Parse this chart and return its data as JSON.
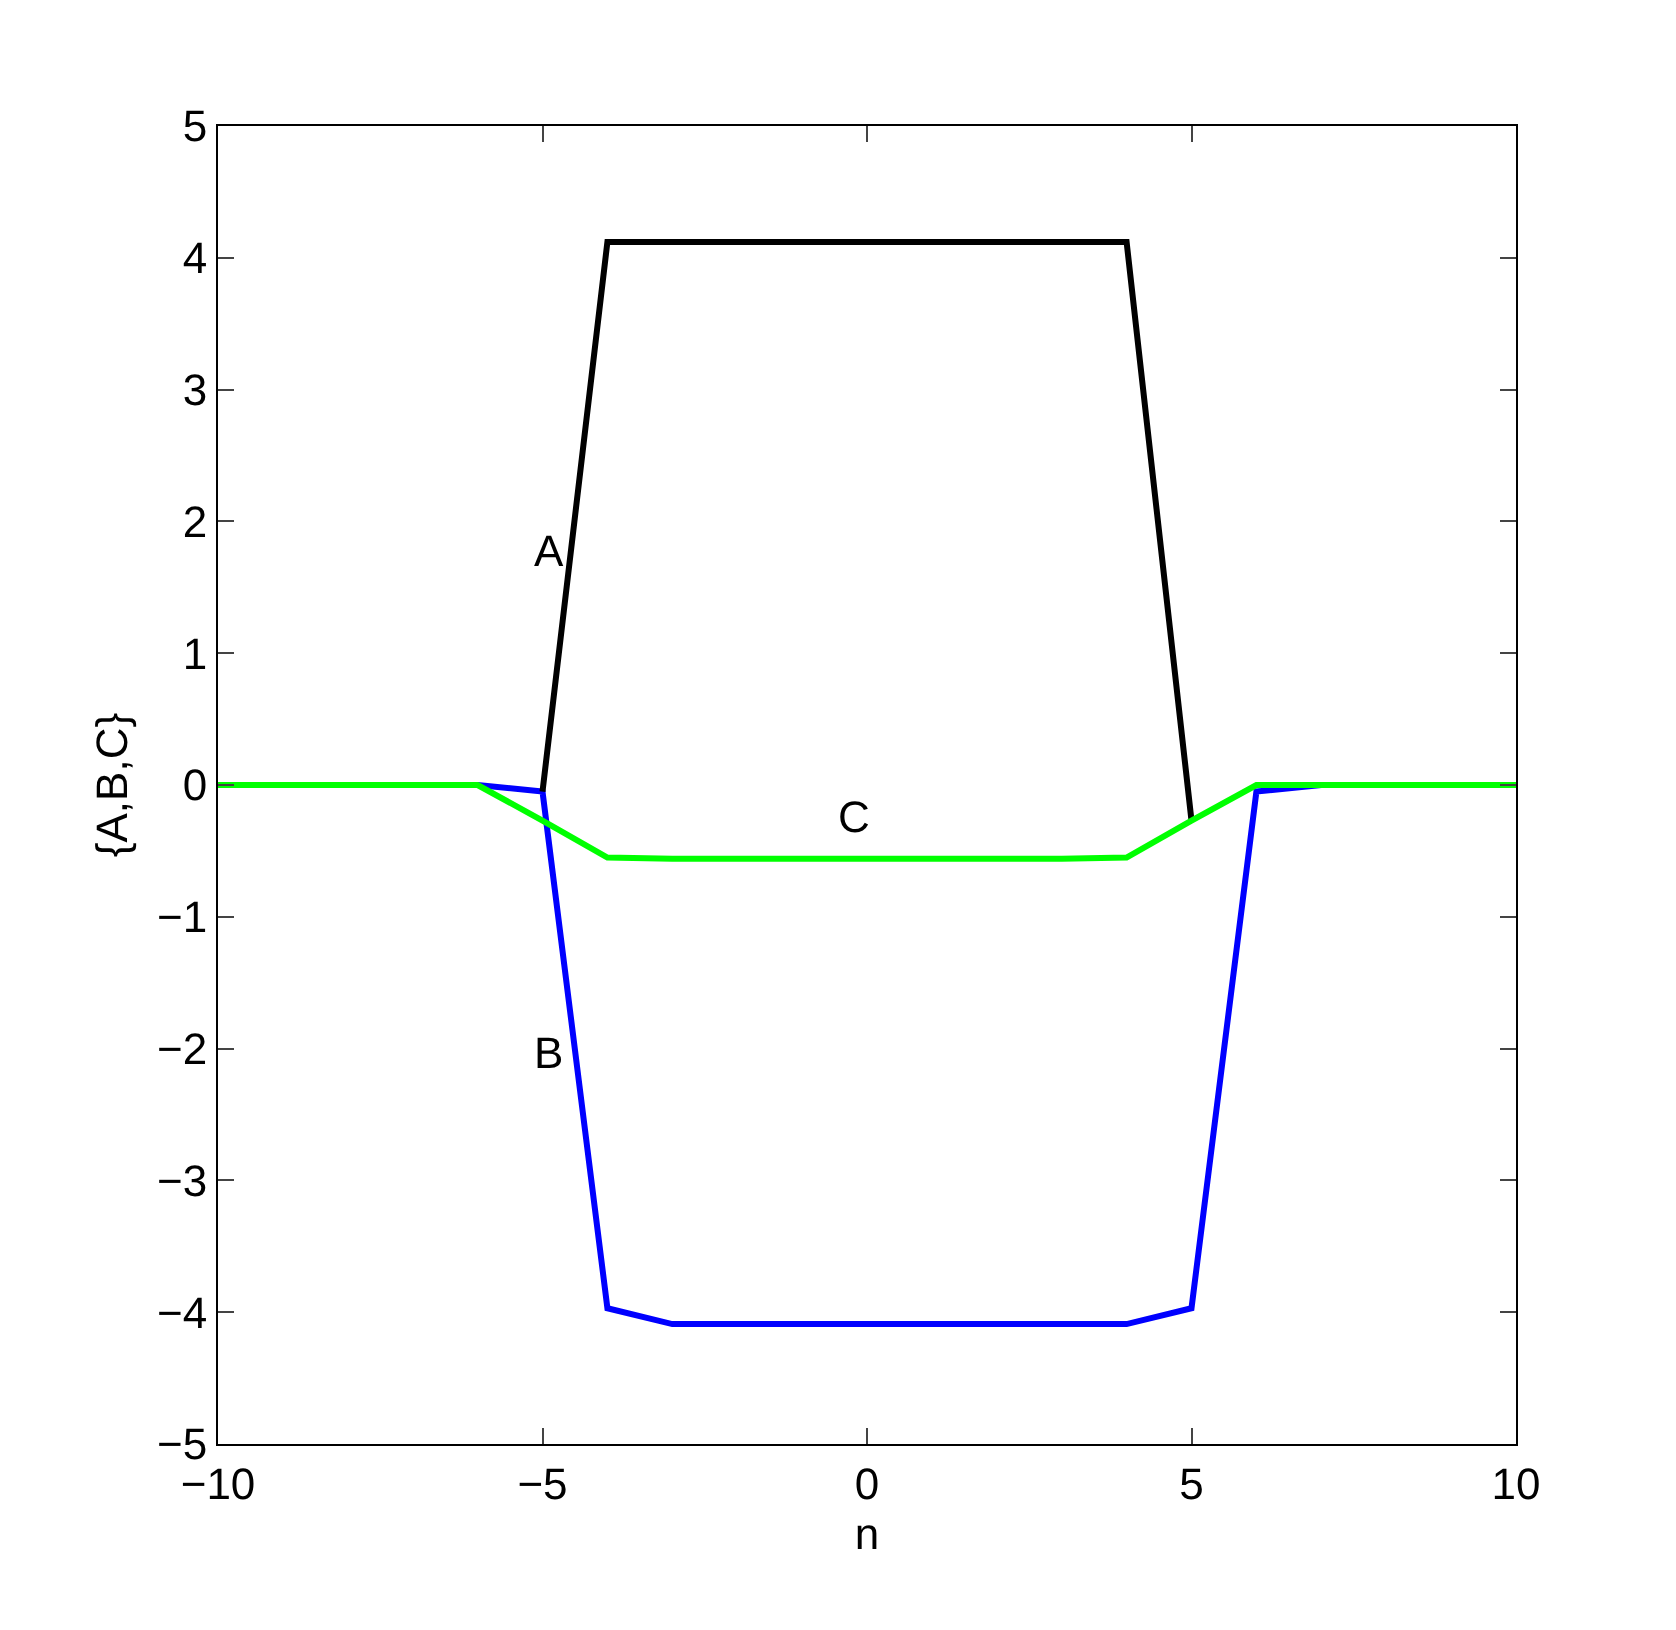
{
  "chart_data": {
    "type": "line",
    "xlabel": "n",
    "ylabel": "{A,B,C}",
    "xlim": [
      -10,
      10
    ],
    "xticks": [
      -10,
      -5,
      0,
      5,
      10
    ],
    "ylim": [
      -5,
      5
    ],
    "yticks": [
      -5,
      -4,
      -3,
      -2,
      -1,
      0,
      1,
      2,
      3,
      4,
      5
    ],
    "grid": false,
    "legend": false,
    "marker": "none",
    "line_style": "solid",
    "series": [
      {
        "name": "B",
        "color": "#0000ff",
        "x": [
          -7,
          -6,
          -5,
          -4,
          -3,
          -2,
          -1,
          0,
          1,
          2,
          3,
          4,
          5,
          6,
          7,
          8
        ],
        "values": [
          0,
          0,
          -0.05,
          -3.97,
          -4.09,
          -4.09,
          -4.09,
          -4.09,
          -4.09,
          -4.09,
          -4.09,
          -4.09,
          -3.97,
          -0.05,
          0,
          0
        ]
      },
      {
        "name": "A",
        "color": "#000000",
        "x": [
          -5,
          -4,
          -3,
          -2,
          -1,
          0,
          1,
          2,
          3,
          4,
          5
        ],
        "values": [
          -0.05,
          4.12,
          4.12,
          4.12,
          4.12,
          4.12,
          4.12,
          4.12,
          4.12,
          4.12,
          -0.27
        ]
      },
      {
        "name": "C",
        "color": "#00ff00",
        "x": [
          -10,
          -9,
          -8,
          -7,
          -6,
          -5,
          -4,
          -3,
          -2,
          -1,
          0,
          1,
          2,
          3,
          4,
          5,
          6,
          7,
          8,
          9,
          10
        ],
        "values": [
          0,
          0,
          0,
          0,
          0,
          -0.27,
          -0.55,
          -0.56,
          -0.56,
          -0.56,
          -0.56,
          -0.56,
          -0.56,
          -0.56,
          -0.55,
          -0.27,
          0,
          0,
          0,
          0,
          0
        ]
      }
    ]
  }
}
